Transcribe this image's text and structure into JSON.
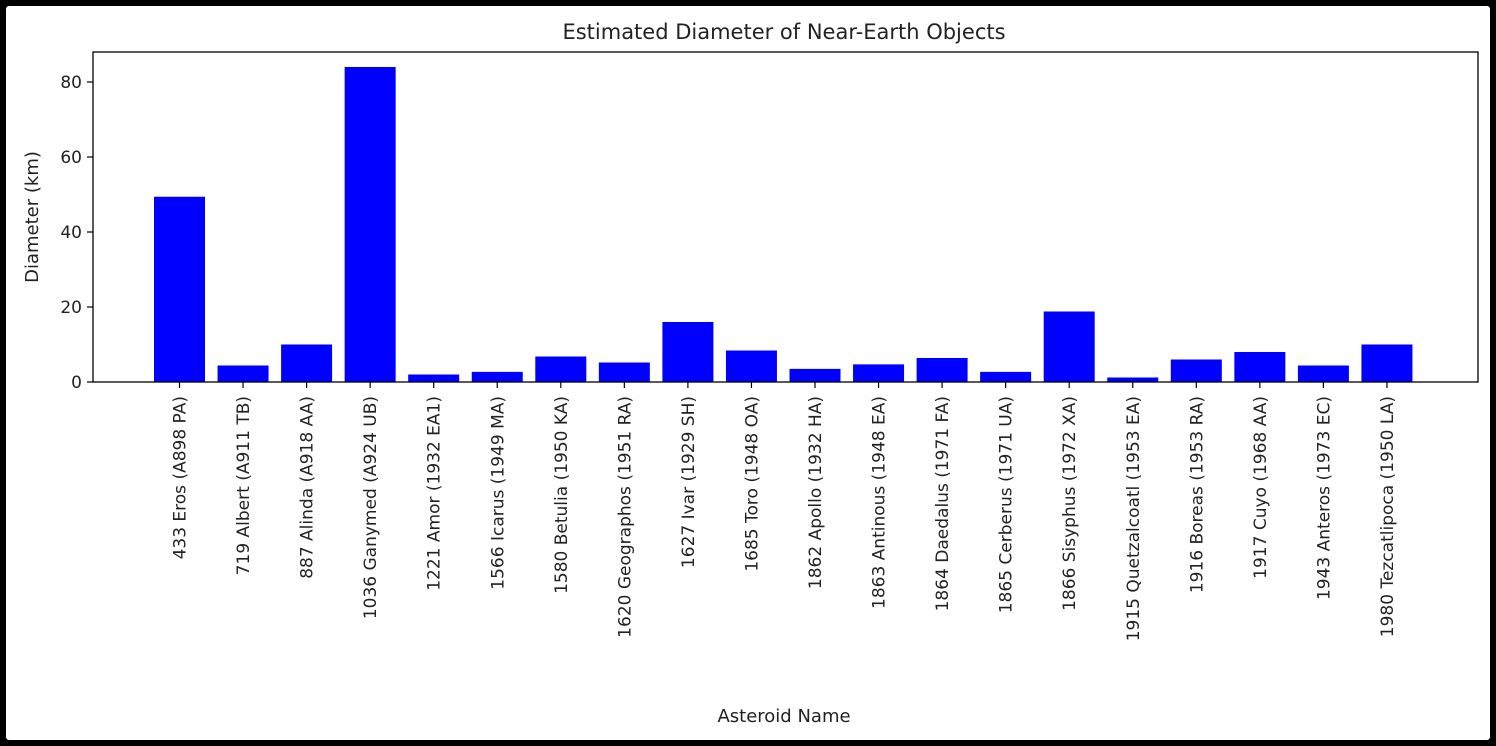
{
  "chart_data": {
    "type": "bar",
    "title": "Estimated Diameter of Near-Earth Objects",
    "xlabel": "Asteroid Name",
    "ylabel": "Diameter (km)",
    "ylim": [
      0,
      88
    ],
    "yticks": [
      0,
      20,
      40,
      60,
      80
    ],
    "bar_color": "#0000ff",
    "grid": false,
    "categories": [
      "433 Eros (A898 PA)",
      "719 Albert (A911 TB)",
      "887 Alinda (A918 AA)",
      "1036 Ganymed (A924 UB)",
      "1221 Amor (1932 EA1)",
      "1566 Icarus (1949 MA)",
      "1580 Betulia (1950 KA)",
      "1620 Geographos (1951 RA)",
      "1627 Ivar (1929 SH)",
      "1685 Toro (1948 OA)",
      "1862 Apollo (1932 HA)",
      "1863 Antinous (1948 EA)",
      "1864 Daedalus (1971 FA)",
      "1865 Cerberus (1971 UA)",
      "1866 Sisyphus (1972 XA)",
      "1915 Quetzalcoatl (1953 EA)",
      "1916 Boreas (1953 RA)",
      "1917 Cuyo (1968 AA)",
      "1943 Anteros (1973 EC)",
      "1980 Tezcatlipoca (1950 LA)"
    ],
    "values": [
      49.4,
      4.4,
      10.0,
      84.0,
      2.0,
      2.7,
      6.8,
      5.2,
      16.0,
      8.4,
      3.5,
      4.7,
      6.4,
      2.7,
      18.8,
      1.2,
      6.0,
      8.0,
      4.4,
      10.0
    ]
  }
}
